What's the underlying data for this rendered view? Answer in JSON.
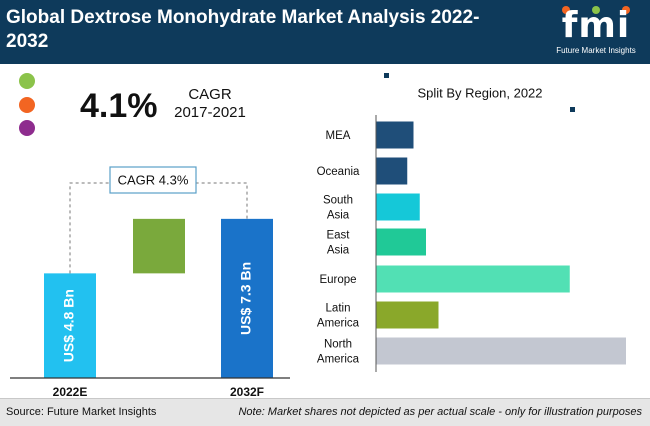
{
  "header": {
    "title": "Global Dextrose Monohydrate Market Analysis 2022-2032",
    "logo_text": "fmi",
    "logo_sub": "Future Market Insights"
  },
  "cagr": {
    "value": "4.1%",
    "label": "CAGR",
    "period": "2017-2021"
  },
  "chart_data": [
    {
      "type": "bar",
      "categories": [
        "2022E",
        "2032F"
      ],
      "values": [
        4.8,
        7.3
      ],
      "data_labels": [
        "US$ 4.8 Bn",
        "US$ 7.3 Bn"
      ],
      "annotation": "CAGR 4.3%",
      "colors": [
        "#22c1f0",
        "#1a73c9",
        "#7aa93c"
      ]
    },
    {
      "type": "bar",
      "orientation": "horizontal",
      "title": "Split By Region, 2022",
      "categories": [
        "MEA",
        "Oceania",
        "South Asia",
        "East Asia",
        "Europe",
        "Latin America",
        "North America"
      ],
      "values": [
        3,
        2.5,
        3.5,
        4,
        15.5,
        5,
        20
      ],
      "colors": [
        "#1f4e79",
        "#1f4e79",
        "#15c8d8",
        "#20c997",
        "#52e0b4",
        "#8aa82a",
        "#c3c7d1"
      ]
    }
  ],
  "footer": {
    "source": "Source: Future Market Insights",
    "note": "Note: Market shares not depicted as per actual scale - only for illustration purposes"
  },
  "colors": {
    "header_bg": "#0e3a5b",
    "dot_green": "#8bc34a",
    "dot_orange": "#f26522",
    "dot_purple": "#8e2c8e"
  }
}
